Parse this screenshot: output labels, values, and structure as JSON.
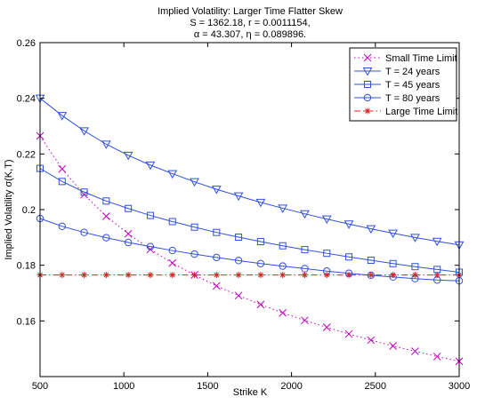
{
  "figure": {
    "title_lines": [
      "Implied Volatility: Larger Time Flatter Skew",
      "S = 1362.18, r = 0.0011154,",
      "α = 43.307, η = 0.089896."
    ]
  },
  "chart_data": {
    "type": "line",
    "title": "Implied Volatility: Larger Time Flatter Skew",
    "xlabel": "Strike K",
    "ylabel": "Implied Volatility σ(K,T)",
    "xlim": [
      500,
      3000
    ],
    "ylim": [
      0.14,
      0.26
    ],
    "xticks": [
      500,
      1000,
      1500,
      2000,
      2500,
      3000
    ],
    "xtick_labels": [
      "500",
      "1000",
      "1500",
      "2000",
      "2500",
      "3000"
    ],
    "yticks": [
      0.16,
      0.18,
      0.2,
      0.22,
      0.24,
      0.26
    ],
    "ytick_labels": [
      "0.16",
      "0.18",
      "0.2",
      "0.22",
      "0.24",
      "0.26"
    ],
    "grid": false,
    "legend_position": "top-right",
    "x": [
      500,
      631.6,
      763.2,
      894.7,
      1026.3,
      1157.9,
      1289.5,
      1421.1,
      1552.6,
      1684.2,
      1815.8,
      1947.4,
      2078.9,
      2210.5,
      2342.1,
      2473.7,
      2605.3,
      2736.8,
      2868.4,
      3000
    ],
    "series": [
      {
        "name": "Small Time Limit",
        "color": "#bf00bf",
        "line": "dotted",
        "marker": "x",
        "values": [
          0.2265,
          0.2146,
          0.2054,
          0.1976,
          0.1913,
          0.1857,
          0.1808,
          0.1765,
          0.1726,
          0.1691,
          0.1659,
          0.1629,
          0.1602,
          0.1577,
          0.1553,
          0.1531,
          0.151,
          0.1491,
          0.1472,
          0.1455
        ]
      },
      {
        "name": "T = 24 years",
        "color": "#3050d8",
        "line": "solid",
        "marker": "triangle-down",
        "values": [
          0.24,
          0.2338,
          0.2283,
          0.2235,
          0.2195,
          0.216,
          0.2129,
          0.21,
          0.2073,
          0.2049,
          0.2026,
          0.2005,
          0.1985,
          0.1966,
          0.1948,
          0.1931,
          0.1915,
          0.19,
          0.1886,
          0.1873
        ]
      },
      {
        "name": "T = 45 years",
        "color": "#3050d8",
        "line": "solid",
        "marker": "square",
        "values": [
          0.2148,
          0.2101,
          0.2063,
          0.2031,
          0.2004,
          0.1979,
          0.1957,
          0.1937,
          0.1918,
          0.1901,
          0.1885,
          0.187,
          0.1856,
          0.1843,
          0.183,
          0.1818,
          0.1806,
          0.1795,
          0.1785,
          0.1775
        ]
      },
      {
        "name": "T = 80 years",
        "color": "#3050d8",
        "line": "solid",
        "marker": "circle",
        "values": [
          0.1968,
          0.194,
          0.1918,
          0.1899,
          0.1882,
          0.1867,
          0.1853,
          0.184,
          0.1828,
          0.1817,
          0.1806,
          0.1797,
          0.1788,
          0.1779,
          0.1771,
          0.1764,
          0.1758,
          0.1752,
          0.1747,
          0.1744
        ]
      },
      {
        "name": "Large Time Limit",
        "color": "#dd2222",
        "line": "dashdot",
        "marker": "star",
        "values": [
          0.1765,
          0.1765,
          0.1765,
          0.1765,
          0.1765,
          0.1765,
          0.1765,
          0.1765,
          0.1765,
          0.1765,
          0.1765,
          0.1765,
          0.1765,
          0.1765,
          0.1765,
          0.1765,
          0.1765,
          0.1765,
          0.1765,
          0.1765
        ]
      }
    ]
  }
}
